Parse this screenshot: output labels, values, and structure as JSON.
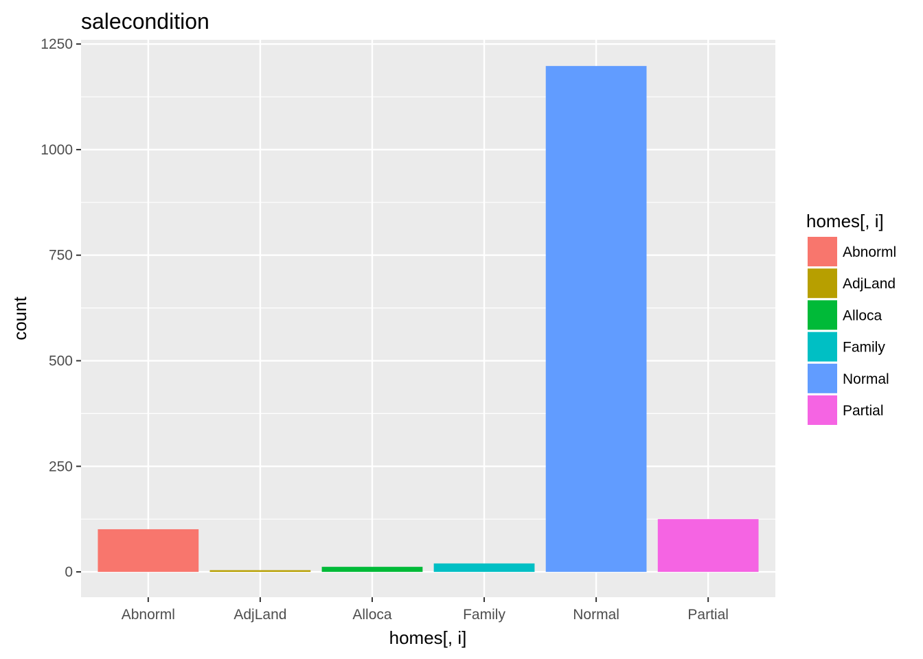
{
  "chart_data": {
    "type": "bar",
    "title": "salecondition",
    "xlabel": "homes[, i]",
    "ylabel": "count",
    "categories": [
      "Abnorml",
      "AdjLand",
      "Alloca",
      "Family",
      "Normal",
      "Partial"
    ],
    "values": [
      101,
      4,
      12,
      20,
      1198,
      125
    ],
    "colors": [
      "#F8766D",
      "#B79F00",
      "#00BA38",
      "#00BFC4",
      "#619CFF",
      "#F564E3"
    ],
    "ylim": [
      -60,
      1260
    ],
    "yticks": [
      0,
      250,
      500,
      750,
      1000,
      1250
    ],
    "ytick_labels": [
      "0",
      "250",
      "500",
      "750",
      "1000",
      "1250"
    ],
    "grid": true,
    "background": "#EBEBEB",
    "legend": {
      "title": "homes[, i]",
      "position": "right",
      "entries": [
        "Abnorml",
        "AdjLand",
        "Alloca",
        "Family",
        "Normal",
        "Partial"
      ]
    }
  }
}
